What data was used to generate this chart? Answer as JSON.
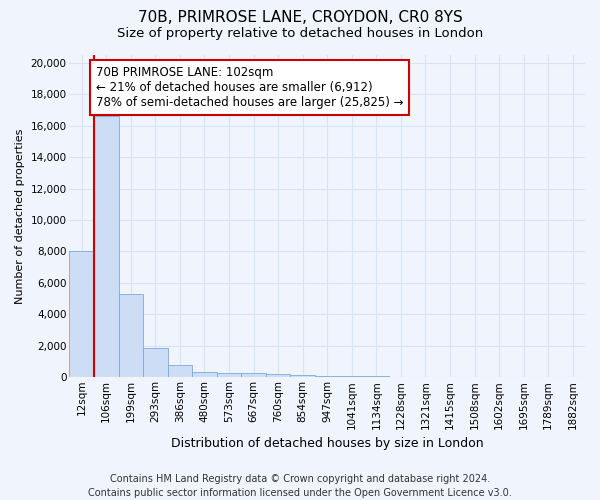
{
  "title1": "70B, PRIMROSE LANE, CROYDON, CR0 8YS",
  "title2": "Size of property relative to detached houses in London",
  "xlabel": "Distribution of detached houses by size in London",
  "ylabel": "Number of detached properties",
  "categories": [
    "12sqm",
    "106sqm",
    "199sqm",
    "293sqm",
    "386sqm",
    "480sqm",
    "573sqm",
    "667sqm",
    "760sqm",
    "854sqm",
    "947sqm",
    "1041sqm",
    "1134sqm",
    "1228sqm",
    "1321sqm",
    "1415sqm",
    "1508sqm",
    "1602sqm",
    "1695sqm",
    "1789sqm",
    "1882sqm"
  ],
  "values": [
    8050,
    16600,
    5300,
    1850,
    750,
    350,
    280,
    240,
    200,
    120,
    80,
    60,
    45,
    35,
    25,
    18,
    12,
    8,
    6,
    4,
    3
  ],
  "bar_color": "#ccddf5",
  "bar_edge_color": "#7aaadd",
  "background_color": "#f0f4fc",
  "plot_bg_color": "#f0f4fc",
  "grid_color": "#d8e4f5",
  "property_line_color": "#cc0000",
  "annotation_text": "70B PRIMROSE LANE: 102sqm\n← 21% of detached houses are smaller (6,912)\n78% of semi-detached houses are larger (25,825) →",
  "annotation_box_facecolor": "#ffffff",
  "annotation_box_edgecolor": "#cc0000",
  "ylim": [
    0,
    20500
  ],
  "yticks": [
    0,
    2000,
    4000,
    6000,
    8000,
    10000,
    12000,
    14000,
    16000,
    18000,
    20000
  ],
  "footer": "Contains HM Land Registry data © Crown copyright and database right 2024.\nContains public sector information licensed under the Open Government Licence v3.0.",
  "title1_fontsize": 11,
  "title2_fontsize": 9.5,
  "xlabel_fontsize": 9,
  "ylabel_fontsize": 8,
  "tick_fontsize": 7.5,
  "annotation_fontsize": 8.5,
  "footer_fontsize": 7
}
